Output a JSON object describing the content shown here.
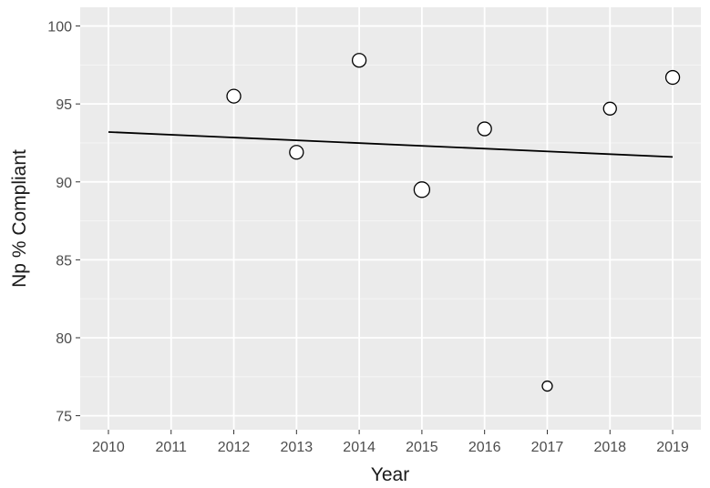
{
  "chart_data": {
    "type": "scatter",
    "title": "",
    "xlabel": "Year",
    "ylabel": "Np % Compliant",
    "xlim": [
      2009.55,
      2019.45
    ],
    "ylim": [
      74.1,
      101.2
    ],
    "x_ticks": [
      2010,
      2011,
      2012,
      2013,
      2014,
      2015,
      2016,
      2017,
      2018,
      2019
    ],
    "y_ticks": [
      75,
      80,
      85,
      90,
      95,
      100
    ],
    "grid": true,
    "legend": "none",
    "points": [
      {
        "x": 2012,
        "y": 95.5,
        "size": 7.5
      },
      {
        "x": 2013,
        "y": 91.9,
        "size": 7.5
      },
      {
        "x": 2014,
        "y": 97.8,
        "size": 7.5
      },
      {
        "x": 2015,
        "y": 89.5,
        "size": 8.5
      },
      {
        "x": 2016,
        "y": 93.4,
        "size": 7.5
      },
      {
        "x": 2017,
        "y": 76.9,
        "size": 5.5
      },
      {
        "x": 2018,
        "y": 94.7,
        "size": 7.0
      },
      {
        "x": 2019,
        "y": 96.7,
        "size": 7.5
      }
    ],
    "trend_line": {
      "x": [
        2010,
        2019
      ],
      "y": [
        93.2,
        91.6
      ]
    },
    "colors": {
      "panel": "#ebebeb",
      "grid_major": "#ffffff",
      "grid_minor": "#f5f5f5",
      "point_stroke": "#000000",
      "point_fill": "#ffffff",
      "line": "#000000",
      "tick_text": "#4d4d4d",
      "title_text": "#1a1a1a"
    }
  }
}
